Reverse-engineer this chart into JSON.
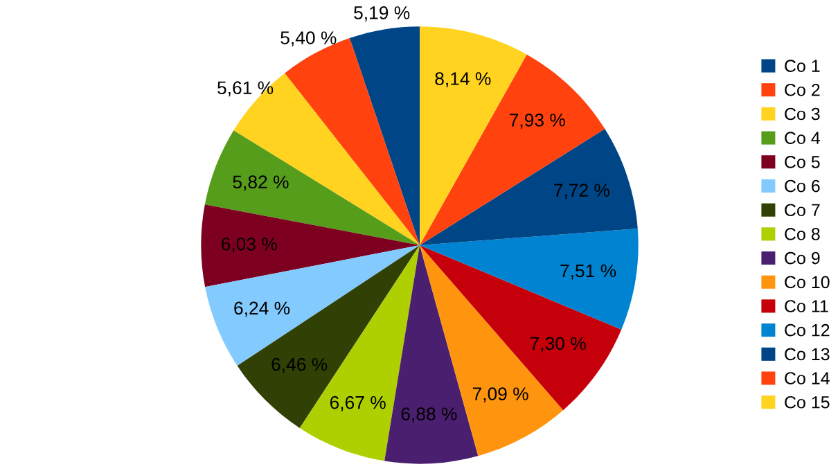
{
  "chart_data": {
    "type": "pie",
    "categories": [
      "Co 1",
      "Co 2",
      "Co 3",
      "Co 4",
      "Co 5",
      "Co 6",
      "Co 7",
      "Co 8",
      "Co 9",
      "Co 10",
      "Co 11",
      "Co 12",
      "Co 13",
      "Co 14",
      "Co 15"
    ],
    "values": [
      5.19,
      5.4,
      5.61,
      5.82,
      6.03,
      6.24,
      6.46,
      6.67,
      6.88,
      7.09,
      7.3,
      7.51,
      7.72,
      7.93,
      8.14
    ],
    "value_labels": [
      "5,19 %",
      "5,40 %",
      "5,61 %",
      "5,82 %",
      "6,03 %",
      "6,24 %",
      "6,46 %",
      "6,67 %",
      "6,88 %",
      "7,09 %",
      "7,30 %",
      "7,51 %",
      "7,72 %",
      "7,93 %",
      "8,14 %"
    ],
    "colors": [
      "#004586",
      "#ff420e",
      "#ffd320",
      "#579d1c",
      "#7e0021",
      "#83caff",
      "#314004",
      "#aecf00",
      "#4b1f6f",
      "#ff950e",
      "#c5000b",
      "#0084d1",
      "#004586",
      "#ff420e",
      "#ffd320"
    ],
    "legend": "right"
  }
}
